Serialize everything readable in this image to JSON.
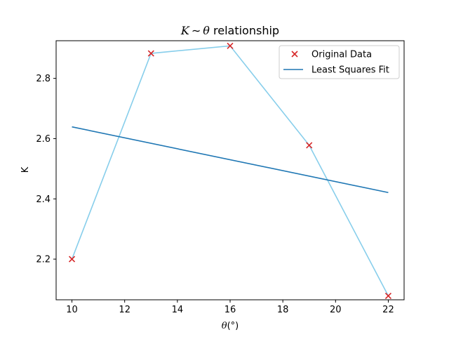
{
  "chart_data": {
    "type": "line",
    "title": "K ~ θ relationship",
    "title_parts": {
      "k": "K",
      "sep": "∼",
      "theta": "θ",
      "rest": " relationship"
    },
    "xlabel": "θ(°)",
    "xlabel_parts": {
      "theta": "θ",
      "deg": "(°)"
    },
    "ylabel": "K",
    "xlim": [
      9.4,
      22.6
    ],
    "ylim": [
      2.065,
      2.925
    ],
    "xticks": [
      10,
      12,
      14,
      16,
      18,
      20,
      22
    ],
    "yticks": [
      2.2,
      2.4,
      2.6,
      2.8
    ],
    "legend_position": "upper right",
    "series": [
      {
        "name": "Original Data",
        "kind": "scatter",
        "marker": "x",
        "color": "#d62728",
        "x": [
          10,
          13,
          16,
          19,
          22
        ],
        "y": [
          2.2,
          2.883,
          2.908,
          2.578,
          2.078
        ]
      },
      {
        "name": "",
        "kind": "line",
        "color": "#87ceeb",
        "x": [
          10,
          13,
          16,
          19,
          22
        ],
        "y": [
          2.2,
          2.883,
          2.908,
          2.578,
          2.078
        ]
      },
      {
        "name": "Least Squares Fit",
        "kind": "line",
        "color": "#1f77b4",
        "x": [
          10,
          22
        ],
        "y": [
          2.639,
          2.421
        ]
      }
    ]
  }
}
